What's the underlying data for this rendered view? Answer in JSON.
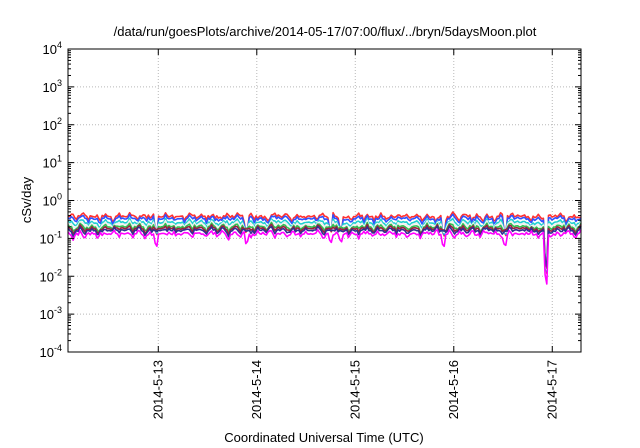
{
  "chart_data": {
    "type": "line",
    "title": "/data/run/goesPlots/archive/2014-05-17/07:00/flux/../bryn/5daysMoon.plot",
    "xlabel": "Coordinated Universal Time (UTC)",
    "ylabel": "cSv/day",
    "yscale": "log",
    "ylim": [
      0.0001,
      10000
    ],
    "xlim": [
      "2014-05-12 02:00",
      "2014-05-17 07:00"
    ],
    "grid": true,
    "legend": "none",
    "x_ticks": [
      {
        "date": "2014-05-13 00:00",
        "label": "2014-5-13"
      },
      {
        "date": "2014-05-14 00:00",
        "label": "2014-5-14"
      },
      {
        "date": "2014-05-15 00:00",
        "label": "2014-5-15"
      },
      {
        "date": "2014-05-16 00:00",
        "label": "2014-5-16"
      },
      {
        "date": "2014-05-17 00:00",
        "label": "2014-5-17"
      }
    ],
    "y_ticks": [
      {
        "value": 10000,
        "base": "10",
        "exp": "4"
      },
      {
        "value": 1000,
        "base": "10",
        "exp": "3"
      },
      {
        "value": 100,
        "base": "10",
        "exp": "2"
      },
      {
        "value": 10,
        "base": "10",
        "exp": "1"
      },
      {
        "value": 1,
        "base": "10",
        "exp": "0"
      },
      {
        "value": 0.1,
        "base": "10",
        "exp": "-1"
      },
      {
        "value": 0.01,
        "base": "10",
        "exp": "-2"
      },
      {
        "value": 0.001,
        "base": "10",
        "exp": "-3"
      },
      {
        "value": 0.0001,
        "base": "10",
        "exp": "-4"
      }
    ],
    "series": [
      {
        "color": "#ff3030",
        "level": 0.38
      },
      {
        "color": "#3050ff",
        "level": 0.33
      },
      {
        "color": "#20d0d0",
        "level": 0.26
      },
      {
        "color": "#f0f0f0",
        "level": 0.23
      },
      {
        "color": "#30c050",
        "level": 0.2
      },
      {
        "color": "#9a2040",
        "level": 0.18
      },
      {
        "color": "#303090",
        "level": 0.16
      },
      {
        "color": "#ff00ff",
        "level": 0.13
      }
    ],
    "dips": [
      {
        "date": "2014-05-12 23:30",
        "value": 0.05
      },
      {
        "date": "2014-05-13 21:30",
        "value": 0.06
      },
      {
        "date": "2014-05-14 18:00",
        "value": 0.065
      },
      {
        "date": "2014-05-14 20:30",
        "value": 0.07
      },
      {
        "date": "2014-05-15 21:30",
        "value": 0.045
      },
      {
        "date": "2014-05-16 12:30",
        "value": 0.05
      },
      {
        "date": "2014-05-16 22:30",
        "value": 0.0018
      }
    ]
  }
}
